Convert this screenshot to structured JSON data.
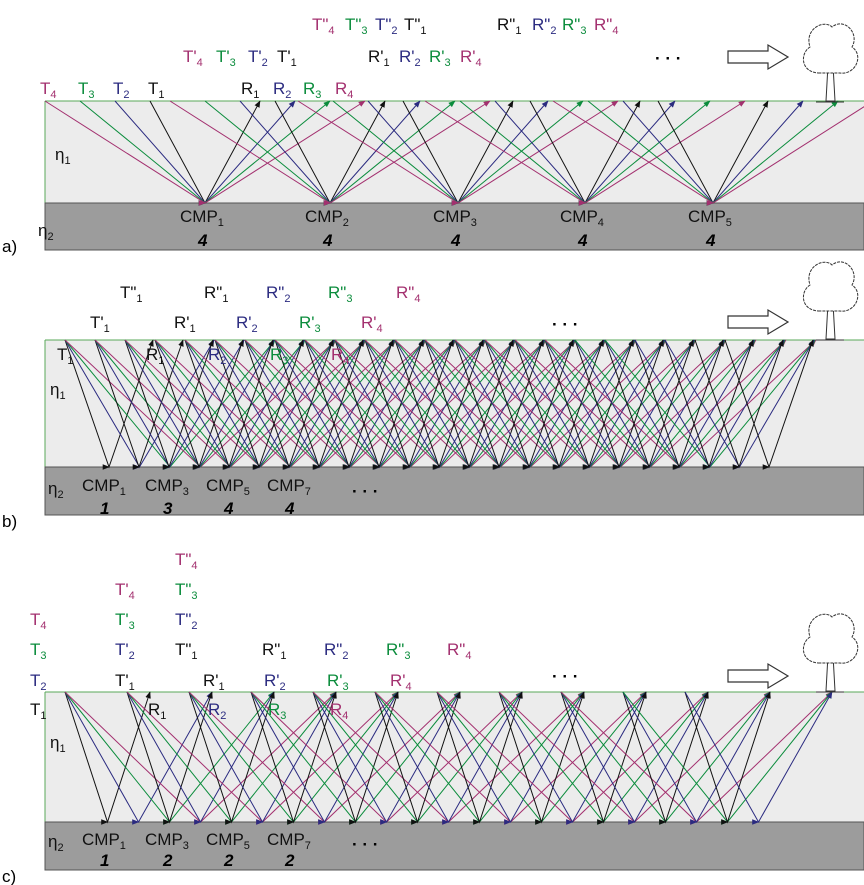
{
  "panels": [
    {
      "label": "a)",
      "eta1": {
        "text": "η",
        "sub": "1"
      },
      "eta2": {
        "text": "η",
        "sub": "2"
      },
      "labels": [
        {
          "text": "T",
          "sub": "4"
        },
        {
          "text": "T",
          "sub": "3"
        },
        {
          "text": "T",
          "sub": "2"
        },
        {
          "text": "T",
          "sub": "1"
        },
        {
          "text": "R",
          "sub": "1"
        },
        {
          "text": "R",
          "sub": "2"
        },
        {
          "text": "R",
          "sub": "3"
        },
        {
          "text": "R",
          "sub": "4"
        },
        {
          "text": "T'",
          "sub": "4"
        },
        {
          "text": "T'",
          "sub": "3"
        },
        {
          "text": "T'",
          "sub": "2"
        },
        {
          "text": "T'",
          "sub": "1"
        },
        {
          "text": "R'",
          "sub": "1"
        },
        {
          "text": "R'",
          "sub": "2"
        },
        {
          "text": "R'",
          "sub": "3"
        },
        {
          "text": "R'",
          "sub": "4"
        },
        {
          "text": "T\"",
          "sub": "4"
        },
        {
          "text": "T\"",
          "sub": "3"
        },
        {
          "text": "T\"",
          "sub": "2"
        },
        {
          "text": "T\"",
          "sub": "1"
        },
        {
          "text": "R\"",
          "sub": "1"
        },
        {
          "text": "R\"",
          "sub": "2"
        },
        {
          "text": "R\"",
          "sub": "3"
        },
        {
          "text": "R\"",
          "sub": "4"
        }
      ],
      "cmps": [
        {
          "text": "CMP",
          "sub": "1",
          "fold": "4"
        },
        {
          "text": "CMP",
          "sub": "2",
          "fold": "4"
        },
        {
          "text": "CMP",
          "sub": "3",
          "fold": "4"
        },
        {
          "text": "CMP",
          "sub": "4",
          "fold": "4"
        },
        {
          "text": "CMP",
          "sub": "5",
          "fold": "4"
        }
      ],
      "ellipsis": [
        "· · ·"
      ]
    },
    {
      "label": "b)",
      "eta1": {
        "text": "η",
        "sub": "1"
      },
      "eta2": {
        "text": "η",
        "sub": "2"
      },
      "labels": [
        {
          "text": "T",
          "sub": "1"
        },
        {
          "text": "R",
          "sub": "1"
        },
        {
          "text": "R",
          "sub": "2"
        },
        {
          "text": "R",
          "sub": "3"
        },
        {
          "text": "R",
          "sub": "4"
        },
        {
          "text": "T'",
          "sub": "1"
        },
        {
          "text": "R'",
          "sub": "1"
        },
        {
          "text": "R'",
          "sub": "2"
        },
        {
          "text": "R'",
          "sub": "3"
        },
        {
          "text": "R'",
          "sub": "4"
        },
        {
          "text": "T\"",
          "sub": "1"
        },
        {
          "text": "R\"",
          "sub": "1"
        },
        {
          "text": "R\"",
          "sub": "2"
        },
        {
          "text": "R\"",
          "sub": "3"
        },
        {
          "text": "R\"",
          "sub": "4"
        }
      ],
      "cmps": [
        {
          "text": "CMP",
          "sub": "1",
          "fold": "1"
        },
        {
          "text": "CMP",
          "sub": "3",
          "fold": "3"
        },
        {
          "text": "CMP",
          "sub": "5",
          "fold": "4"
        },
        {
          "text": "CMP",
          "sub": "7",
          "fold": "4"
        }
      ],
      "ellipsis": [
        "· · ·",
        "· · ·"
      ]
    },
    {
      "label": "c)",
      "eta1": {
        "text": "η",
        "sub": "1"
      },
      "eta2": {
        "text": "η",
        "sub": "2"
      },
      "labels": [
        {
          "text": "T",
          "sub": "4"
        },
        {
          "text": "T",
          "sub": "3"
        },
        {
          "text": "T",
          "sub": "2"
        },
        {
          "text": "T",
          "sub": "1"
        },
        {
          "text": "T'",
          "sub": "4"
        },
        {
          "text": "T'",
          "sub": "3"
        },
        {
          "text": "T'",
          "sub": "2"
        },
        {
          "text": "T'",
          "sub": "1"
        },
        {
          "text": "T\"",
          "sub": "4"
        },
        {
          "text": "T\"",
          "sub": "3"
        },
        {
          "text": "T\"",
          "sub": "2"
        },
        {
          "text": "T\"",
          "sub": "1"
        },
        {
          "text": "R",
          "sub": "1"
        },
        {
          "text": "R",
          "sub": "2"
        },
        {
          "text": "R",
          "sub": "3"
        },
        {
          "text": "R",
          "sub": "4"
        },
        {
          "text": "R'",
          "sub": "1"
        },
        {
          "text": "R'",
          "sub": "2"
        },
        {
          "text": "R'",
          "sub": "3"
        },
        {
          "text": "R'",
          "sub": "4"
        },
        {
          "text": "R\"",
          "sub": "1"
        },
        {
          "text": "R\"",
          "sub": "2"
        },
        {
          "text": "R\"",
          "sub": "3"
        },
        {
          "text": "R\"",
          "sub": "4"
        }
      ],
      "cmps": [
        {
          "text": "CMP",
          "sub": "1",
          "fold": "1"
        },
        {
          "text": "CMP",
          "sub": "3",
          "fold": "2"
        },
        {
          "text": "CMP",
          "sub": "5",
          "fold": "2"
        },
        {
          "text": "CMP",
          "sub": "7",
          "fold": "2"
        }
      ],
      "ellipsis": [
        "· · ·",
        "· · ·"
      ]
    }
  ]
}
